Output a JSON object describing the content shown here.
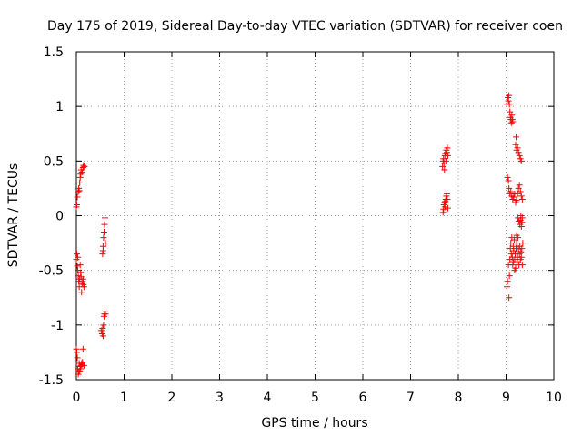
{
  "chart_data": {
    "type": "scatter",
    "title": "Day 175 of 2019, Sidereal Day-to-day VTEC variation (SDTVAR) for receiver coen",
    "xlabel": "GPS time / hours",
    "ylabel": "SDTVAR / TECUs",
    "xlim": [
      0,
      10
    ],
    "ylim": [
      -1.5,
      1.5
    ],
    "xticks": [
      0,
      1,
      2,
      3,
      4,
      5,
      6,
      7,
      8,
      9,
      10
    ],
    "yticks": [
      -1.5,
      -1,
      -0.5,
      0,
      0.5,
      1,
      1.5
    ],
    "xtick_labels": [
      "0",
      "1",
      "2",
      "3",
      "4",
      "5",
      "6",
      "7",
      "8",
      "9",
      "10"
    ],
    "ytick_labels": [
      "-1.5",
      "-1",
      "-0.5",
      "0",
      "0.5",
      "1",
      "1.5"
    ],
    "grid": true,
    "marker": "+",
    "color": "#ff0000",
    "series": [
      {
        "name": "SDTVAR",
        "points": [
          [
            0.0,
            0.08
          ],
          [
            0.01,
            0.1
          ],
          [
            0.02,
            0.17
          ],
          [
            0.04,
            0.22
          ],
          [
            0.05,
            0.25
          ],
          [
            0.06,
            0.23
          ],
          [
            0.07,
            0.3
          ],
          [
            0.08,
            0.35
          ],
          [
            0.09,
            0.38
          ],
          [
            0.1,
            0.42
          ],
          [
            0.12,
            0.4
          ],
          [
            0.14,
            0.44
          ],
          [
            0.15,
            0.46
          ],
          [
            0.17,
            0.45
          ],
          [
            0.0,
            -0.4
          ],
          [
            0.01,
            -0.35
          ],
          [
            0.02,
            -0.46
          ],
          [
            0.03,
            -0.5
          ],
          [
            0.04,
            -0.55
          ],
          [
            0.05,
            -0.6
          ],
          [
            0.06,
            -0.65
          ],
          [
            0.07,
            -0.58
          ],
          [
            0.08,
            -0.45
          ],
          [
            0.09,
            -0.52
          ],
          [
            0.1,
            -0.56
          ],
          [
            0.11,
            -0.7
          ],
          [
            0.12,
            -0.62
          ],
          [
            0.13,
            -0.6
          ],
          [
            0.14,
            -0.58
          ],
          [
            0.15,
            -0.63
          ],
          [
            0.16,
            -0.65
          ],
          [
            0.03,
            -0.38
          ],
          [
            0.0,
            -1.22
          ],
          [
            0.01,
            -1.25
          ],
          [
            0.02,
            -1.3
          ],
          [
            0.03,
            -1.4
          ],
          [
            0.04,
            -1.45
          ],
          [
            0.05,
            -1.43
          ],
          [
            0.06,
            -1.35
          ],
          [
            0.07,
            -1.42
          ],
          [
            0.08,
            -1.38
          ],
          [
            0.09,
            -1.4
          ],
          [
            0.1,
            -1.37
          ],
          [
            0.11,
            -1.35
          ],
          [
            0.12,
            -1.36
          ],
          [
            0.13,
            -1.34
          ],
          [
            0.14,
            -1.22
          ],
          [
            0.16,
            -1.37
          ],
          [
            0.55,
            -0.35
          ],
          [
            0.56,
            -0.28
          ],
          [
            0.57,
            -0.2
          ],
          [
            0.58,
            -0.15
          ],
          [
            0.59,
            -0.08
          ],
          [
            0.6,
            -0.02
          ],
          [
            0.61,
            -0.25
          ],
          [
            0.56,
            -0.32
          ],
          [
            0.52,
            -1.05
          ],
          [
            0.54,
            -1.08
          ],
          [
            0.56,
            -1.1
          ],
          [
            0.57,
            -1.0
          ],
          [
            0.58,
            -0.92
          ],
          [
            0.59,
            -0.9
          ],
          [
            0.6,
            -0.88
          ],
          [
            0.61,
            -0.9
          ],
          [
            0.55,
            -1.03
          ],
          [
            7.67,
            0.45
          ],
          [
            7.68,
            0.5
          ],
          [
            7.69,
            0.52
          ],
          [
            7.7,
            0.48
          ],
          [
            7.71,
            0.42
          ],
          [
            7.72,
            0.55
          ],
          [
            7.73,
            0.57
          ],
          [
            7.74,
            0.5
          ],
          [
            7.75,
            0.6
          ],
          [
            7.76,
            0.58
          ],
          [
            7.77,
            0.62
          ],
          [
            7.78,
            0.55
          ],
          [
            7.68,
            0.03
          ],
          [
            7.69,
            0.06
          ],
          [
            7.7,
            0.1
          ],
          [
            7.71,
            0.12
          ],
          [
            7.72,
            0.08
          ],
          [
            7.73,
            0.13
          ],
          [
            7.74,
            0.15
          ],
          [
            7.75,
            0.18
          ],
          [
            7.76,
            0.2
          ],
          [
            7.77,
            0.15
          ],
          [
            7.78,
            0.07
          ],
          [
            9.02,
            1.02
          ],
          [
            9.04,
            1.08
          ],
          [
            9.05,
            1.05
          ],
          [
            9.06,
            1.1
          ],
          [
            9.07,
            1.02
          ],
          [
            9.08,
            0.95
          ],
          [
            9.09,
            0.9
          ],
          [
            9.1,
            0.88
          ],
          [
            9.11,
            0.85
          ],
          [
            9.12,
            0.92
          ],
          [
            9.13,
            0.88
          ],
          [
            9.14,
            0.86
          ],
          [
            9.2,
            0.65
          ],
          [
            9.21,
            0.72
          ],
          [
            9.22,
            0.6
          ],
          [
            9.24,
            0.62
          ],
          [
            9.26,
            0.58
          ],
          [
            9.28,
            0.55
          ],
          [
            9.3,
            0.52
          ],
          [
            9.32,
            0.5
          ],
          [
            9.03,
            0.35
          ],
          [
            9.05,
            0.32
          ],
          [
            9.06,
            0.25
          ],
          [
            9.08,
            0.2
          ],
          [
            9.1,
            0.22
          ],
          [
            9.12,
            0.18
          ],
          [
            9.14,
            0.15
          ],
          [
            9.16,
            0.17
          ],
          [
            9.18,
            0.2
          ],
          [
            9.2,
            0.12
          ],
          [
            9.22,
            0.14
          ],
          [
            9.24,
            0.2
          ],
          [
            9.26,
            0.25
          ],
          [
            9.28,
            0.28
          ],
          [
            9.3,
            0.22
          ],
          [
            9.32,
            0.18
          ],
          [
            9.34,
            0.15
          ],
          [
            9.25,
            -0.02
          ],
          [
            9.27,
            -0.05
          ],
          [
            9.29,
            -0.08
          ],
          [
            9.3,
            -0.04
          ],
          [
            9.31,
            0.0
          ],
          [
            9.32,
            -0.1
          ],
          [
            9.33,
            -0.06
          ],
          [
            9.34,
            -0.02
          ],
          [
            9.02,
            -0.65
          ],
          [
            9.03,
            -0.6
          ],
          [
            9.05,
            -0.45
          ],
          [
            9.06,
            -0.75
          ],
          [
            9.07,
            -0.55
          ],
          [
            9.08,
            -0.4
          ],
          [
            9.09,
            -0.3
          ],
          [
            9.1,
            -0.25
          ],
          [
            9.11,
            -0.35
          ],
          [
            9.12,
            -0.2
          ],
          [
            9.13,
            -0.38
          ],
          [
            9.14,
            -0.45
          ],
          [
            9.15,
            -0.28
          ],
          [
            9.16,
            -0.32
          ],
          [
            9.17,
            -0.22
          ],
          [
            9.18,
            -0.4
          ],
          [
            9.19,
            -0.35
          ],
          [
            9.2,
            -0.48
          ],
          [
            9.21,
            -0.3
          ],
          [
            9.22,
            -0.25
          ],
          [
            9.23,
            -0.42
          ],
          [
            9.24,
            -0.38
          ],
          [
            9.25,
            -0.2
          ],
          [
            9.26,
            -0.3
          ],
          [
            9.27,
            -0.45
          ],
          [
            9.28,
            -0.35
          ],
          [
            9.29,
            -0.28
          ],
          [
            9.3,
            -0.4
          ],
          [
            9.31,
            -0.33
          ],
          [
            9.32,
            -0.38
          ],
          [
            9.33,
            -0.3
          ],
          [
            9.34,
            -0.45
          ],
          [
            9.35,
            -0.25
          ],
          [
            9.15,
            -0.42
          ],
          [
            9.18,
            -0.5
          ],
          [
            9.22,
            -0.18
          ]
        ]
      }
    ]
  }
}
